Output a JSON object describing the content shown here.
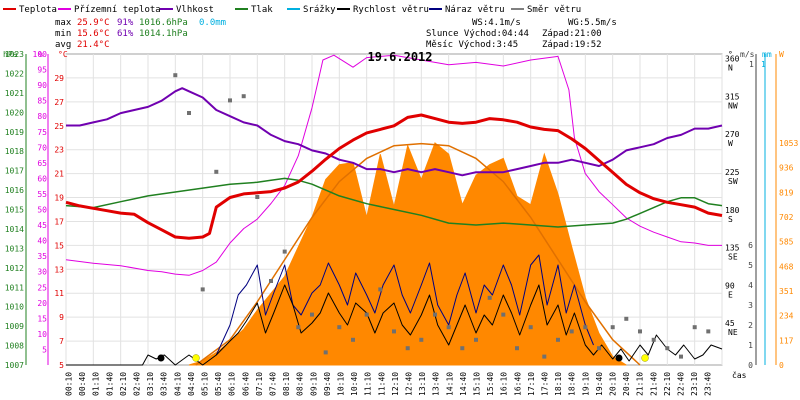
{
  "chart_data": {
    "type": "line",
    "title": "19.6.2012",
    "legend": [
      {
        "name": "Teplota",
        "color": "#e00000"
      },
      {
        "name": "Přízemní teplota",
        "color": "#e000e0"
      },
      {
        "name": "Vlhkost",
        "color": "#7000b0"
      },
      {
        "name": "Tlak",
        "color": "#208020"
      },
      {
        "name": "Srážky",
        "color": "#00b0e0"
      },
      {
        "name": "Rychlost větru",
        "color": "#000000"
      },
      {
        "name": "Náraz větru",
        "color": "#000080"
      },
      {
        "name": "Směr větru",
        "color": "#808080"
      }
    ],
    "stats": {
      "max": {
        "label": "max",
        "temp": "25.9°C",
        "hum": "91%",
        "press": "1016.6hPa",
        "rain": "0.0mm"
      },
      "min": {
        "label": "min",
        "temp": "15.6°C",
        "hum": "61%",
        "press": "1014.1hPa"
      },
      "avg": {
        "label": "avg",
        "temp": "21.4°C"
      }
    },
    "info": {
      "ws": "WS:4.1m/s",
      "wg": "WG:5.5m/s",
      "sun_rise": "Slunce Východ:04:44",
      "sun_set": "Západ:21:00",
      "moon_rise": "Měsíc Východ:3:45",
      "moon_set": "Západ:19:52"
    },
    "axes": {
      "hpa": {
        "unit": "hPa",
        "range": [
          1007,
          1023
        ],
        "ticks": [
          "1023",
          "1022",
          "1021",
          "1020",
          "1019",
          "1018",
          "1017",
          "1016",
          "1015",
          "1014",
          "1013",
          "1012",
          "1011",
          "1010",
          "1009",
          "1008",
          "1007"
        ]
      },
      "percent": {
        "unit": "%",
        "range": [
          0,
          100
        ],
        "ticks": [
          "100",
          "95",
          "90",
          "85",
          "80",
          "75",
          "70",
          "65",
          "60",
          "55",
          "50",
          "45",
          "40",
          "35",
          "30",
          "25",
          "20",
          "15",
          "10",
          "5"
        ]
      },
      "celsius": {
        "unit": "°C",
        "range": [
          5,
          31
        ],
        "ticks": [
          "29",
          "27",
          "25",
          "23",
          "21",
          "19",
          "17",
          "15",
          "13",
          "11",
          "9",
          "7",
          "5"
        ]
      },
      "direction": {
        "unit": "°",
        "ticks": [
          "360",
          "315",
          "270",
          "225",
          "180",
          "135",
          "90",
          "45"
        ],
        "labels": [
          "N",
          "NW",
          "W",
          "SW",
          "S",
          "SE",
          "E",
          "NE"
        ]
      },
      "wind": {
        "unit": "m/s",
        "top_tick": "1",
        "ticks": [
          "6",
          "5",
          "4",
          "3",
          "2",
          "1",
          "0"
        ]
      },
      "rain": {
        "unit": "mm",
        "top_tick": "1"
      },
      "solar": {
        "unit": "W",
        "ticks": [
          "1053",
          "936",
          "819",
          "702",
          "585",
          "468",
          "351",
          "234",
          "117",
          "0"
        ]
      },
      "x_label": "čas",
      "x_ticks": [
        "00:10",
        "00:40",
        "01:10",
        "01:40",
        "02:10",
        "02:40",
        "03:10",
        "03:40",
        "04:10",
        "04:40",
        "05:10",
        "05:40",
        "06:10",
        "06:40",
        "07:10",
        "07:40",
        "08:10",
        "08:40",
        "09:10",
        "09:40",
        "10:10",
        "10:40",
        "11:10",
        "11:40",
        "12:10",
        "12:40",
        "13:10",
        "13:40",
        "14:10",
        "14:40",
        "15:10",
        "15:40",
        "16:10",
        "16:40",
        "17:10",
        "17:40",
        "18:10",
        "18:40",
        "19:10",
        "19:40",
        "20:10",
        "20:40",
        "21:10",
        "21:40",
        "22:10",
        "22:40",
        "23:10",
        "23:40"
      ]
    },
    "series": {
      "teplota": {
        "hours": [
          0,
          0.5,
          1,
          1.5,
          2,
          2.5,
          3,
          3.5,
          4,
          4.5,
          5,
          5.25,
          5.5,
          6,
          6.5,
          7,
          7.5,
          8,
          8.5,
          9,
          9.5,
          10,
          10.5,
          11,
          11.5,
          12,
          12.5,
          13,
          13.5,
          14,
          14.5,
          15,
          15.5,
          16,
          16.5,
          17,
          17.5,
          18,
          18.5,
          19,
          19.5,
          20,
          20.5,
          21,
          21.5,
          22,
          22.5,
          23,
          23.5,
          24
        ],
        "values": [
          18.6,
          18.3,
          18.1,
          17.9,
          17.7,
          17.6,
          16.9,
          16.3,
          15.7,
          15.6,
          15.7,
          16.0,
          18.2,
          19.0,
          19.3,
          19.4,
          19.5,
          19.8,
          20.3,
          21.2,
          22.2,
          23.1,
          23.8,
          24.4,
          24.7,
          25.0,
          25.7,
          25.9,
          25.6,
          25.3,
          25.2,
          25.3,
          25.6,
          25.5,
          25.3,
          24.9,
          24.7,
          24.6,
          23.9,
          23.1,
          22.1,
          21.1,
          20.1,
          19.4,
          18.9,
          18.6,
          18.4,
          18.2,
          17.7,
          17.5
        ]
      },
      "prizemni_teplota": {
        "hours": [
          0,
          1,
          2,
          3,
          3.5,
          4,
          4.5,
          5,
          5.5,
          6,
          6.5,
          7,
          7.5,
          8,
          8.5,
          9,
          9.2,
          9.4,
          9.8,
          10.5,
          11,
          12,
          13,
          14,
          15,
          16,
          17,
          18,
          18.4,
          18.6,
          19,
          19.5,
          20,
          20.5,
          21,
          21.5,
          22,
          22.5,
          23,
          23.5,
          24
        ],
        "values": [
          13.8,
          13.5,
          13.3,
          12.9,
          12.8,
          12.6,
          12.5,
          12.9,
          13.6,
          15.2,
          16.4,
          17.2,
          18.5,
          20.0,
          22.5,
          26.5,
          28.5,
          30.5,
          30.9,
          29.9,
          30.7,
          30.9,
          30.5,
          30.1,
          30.3,
          30.0,
          30.5,
          30.8,
          28.0,
          24.0,
          21.0,
          19.5,
          18.4,
          17.3,
          16.6,
          16.1,
          15.7,
          15.3,
          15.2,
          15.0,
          15.0
        ]
      },
      "vlhkost": {
        "hours": [
          0,
          0.5,
          1,
          1.5,
          2,
          2.5,
          3,
          3.5,
          4,
          4.25,
          4.5,
          5,
          5.5,
          6,
          6.5,
          7,
          7.5,
          8,
          8.5,
          9,
          9.5,
          10,
          10.5,
          11,
          11.5,
          12,
          12.5,
          13,
          13.5,
          14,
          14.5,
          15,
          15.5,
          16,
          16.5,
          17,
          17.5,
          18,
          18.5,
          19,
          19.5,
          20,
          20.5,
          21,
          21.5,
          22,
          22.5,
          23,
          23.5,
          24
        ],
        "values": [
          77,
          77,
          78,
          79,
          81,
          82,
          83,
          85,
          88,
          89,
          88,
          86,
          82,
          80,
          78,
          77,
          74,
          72,
          71,
          69,
          68,
          66,
          65,
          63,
          63,
          62,
          63,
          62,
          63,
          62,
          61,
          62,
          62,
          62,
          63,
          64,
          65,
          65,
          66,
          65,
          64,
          66,
          69,
          70,
          71,
          73,
          74,
          76,
          76,
          77
        ]
      },
      "tlak": {
        "hours": [
          0,
          1,
          2,
          3,
          4,
          5,
          6,
          7,
          7.5,
          8,
          8.5,
          9,
          9.5,
          10,
          11,
          12,
          13,
          14,
          15,
          16,
          17,
          18,
          19,
          20,
          20.5,
          21,
          21.5,
          22,
          22.5,
          23,
          23.5,
          24
        ],
        "values": [
          1015.2,
          1015.1,
          1015.4,
          1015.7,
          1015.9,
          1016.1,
          1016.3,
          1016.4,
          1016.5,
          1016.6,
          1016.5,
          1016.3,
          1016.0,
          1015.7,
          1015.3,
          1015.0,
          1014.7,
          1014.3,
          1014.2,
          1014.3,
          1014.2,
          1014.1,
          1014.2,
          1014.3,
          1014.5,
          1014.8,
          1015.1,
          1015.4,
          1015.6,
          1015.6,
          1015.3,
          1015.2
        ]
      },
      "rychlost_vetru": {
        "hours": [
          0,
          1,
          2,
          2.8,
          3,
          3.3,
          3.6,
          4,
          4.5,
          5,
          5.5,
          6,
          6.3,
          6.6,
          7,
          7.3,
          7.6,
          8,
          8.3,
          8.6,
          9,
          9.3,
          9.6,
          10,
          10.3,
          10.6,
          11,
          11.3,
          11.6,
          12,
          12.3,
          12.6,
          13,
          13.3,
          13.6,
          14,
          14.3,
          14.6,
          15,
          15.3,
          15.6,
          16,
          16.3,
          16.6,
          17,
          17.3,
          17.6,
          18,
          18.3,
          18.6,
          19,
          19.3,
          19.6,
          20,
          20.3,
          20.6,
          21,
          21.3,
          21.6,
          22,
          22.3,
          22.6,
          23,
          23.3,
          23.6,
          24
        ],
        "values": [
          0,
          0,
          0,
          0,
          0.5,
          0.3,
          0.5,
          0,
          0.5,
          0,
          0.5,
          1.2,
          1.6,
          2.2,
          3.1,
          1.6,
          2.6,
          4.0,
          3.0,
          1.6,
          2.1,
          2.6,
          3.6,
          2.6,
          2.0,
          3.1,
          2.6,
          1.6,
          2.6,
          3.1,
          2.0,
          1.5,
          2.5,
          3.5,
          2.0,
          1.0,
          2.0,
          3.0,
          1.6,
          2.5,
          2.0,
          3.5,
          2.6,
          1.5,
          3.0,
          4.0,
          2.0,
          3.0,
          1.5,
          2.6,
          1.0,
          0.5,
          1.0,
          0.3,
          0.8,
          0.2,
          1.0,
          0.5,
          1.5,
          0.8,
          0.5,
          1.0,
          0.3,
          0.5,
          1.0,
          0.8
        ]
      },
      "naraz_vetru": {
        "hours": [
          5.5,
          6,
          6.3,
          6.6,
          7,
          7.3,
          7.6,
          8,
          8.3,
          8.6,
          9,
          9.3,
          9.6,
          10,
          10.3,
          10.6,
          11,
          11.3,
          11.6,
          12,
          12.3,
          12.6,
          13,
          13.3,
          13.6,
          14,
          14.3,
          14.6,
          15,
          15.3,
          15.6,
          16,
          16.3,
          16.6,
          17,
          17.3,
          17.6,
          18,
          18.3,
          18.6,
          19,
          19.3
        ],
        "values": [
          0.5,
          2.0,
          3.5,
          4.0,
          5.0,
          2.5,
          3.6,
          5.0,
          3.0,
          2.5,
          3.6,
          4.0,
          5.1,
          4.0,
          3.0,
          4.6,
          3.5,
          2.6,
          4.0,
          5.0,
          3.5,
          2.6,
          4.0,
          5.1,
          3.0,
          2.0,
          3.5,
          4.6,
          2.6,
          4.0,
          3.5,
          5.0,
          4.0,
          2.5,
          5.0,
          5.5,
          3.0,
          5.0,
          2.6,
          4.0,
          2.0,
          1.0
        ]
      },
      "smer_vetru": {
        "hours": [
          3.5,
          4,
          4.5,
          5,
          5.5,
          6,
          6.5,
          7,
          7.5,
          8,
          8.5,
          9,
          9.5,
          10,
          10.5,
          11,
          11.5,
          12,
          12.5,
          13,
          13.5,
          14,
          14.5,
          15,
          15.5,
          16,
          16.5,
          17,
          17.5,
          18,
          18.5,
          19,
          19.5,
          20,
          20.5,
          21,
          21.5,
          22,
          22.5,
          23,
          23.5
        ],
        "values": [
          10,
          345,
          300,
          90,
          230,
          315,
          320,
          200,
          100,
          135,
          45,
          60,
          15,
          45,
          30,
          60,
          90,
          40,
          20,
          30,
          60,
          45,
          20,
          30,
          80,
          60,
          20,
          45,
          10,
          30,
          40,
          45,
          20,
          45,
          55,
          40,
          30,
          20,
          10,
          45,
          40
        ]
      },
      "solar_radiation": {
        "hours": [
          4.5,
          5,
          5.5,
          6,
          6.5,
          7,
          7.5,
          8,
          8.5,
          9,
          9.5,
          10,
          10.5,
          11,
          11.5,
          12,
          12.5,
          13,
          13.5,
          14,
          14.5,
          15,
          15.5,
          16,
          16.5,
          17,
          17.5,
          18,
          18.5,
          19,
          19.5,
          20,
          20.5
        ],
        "values": [
          0,
          20,
          60,
          110,
          170,
          260,
          340,
          420,
          560,
          700,
          880,
          950,
          960,
          700,
          1000,
          750,
          1040,
          880,
          1053,
          1000,
          760,
          900,
          950,
          980,
          800,
          760,
          1000,
          810,
          560,
          320,
          150,
          40,
          0
        ]
      },
      "clear_sky_radiation": {
        "hours": [
          4.75,
          6,
          7,
          8,
          9,
          10,
          11,
          12,
          13,
          14,
          15,
          16,
          17,
          18,
          19,
          20,
          21
        ],
        "values": [
          0,
          120,
          300,
          500,
          700,
          870,
          980,
          1040,
          1050,
          1040,
          980,
          870,
          700,
          500,
          300,
          120,
          0
        ]
      }
    }
  }
}
